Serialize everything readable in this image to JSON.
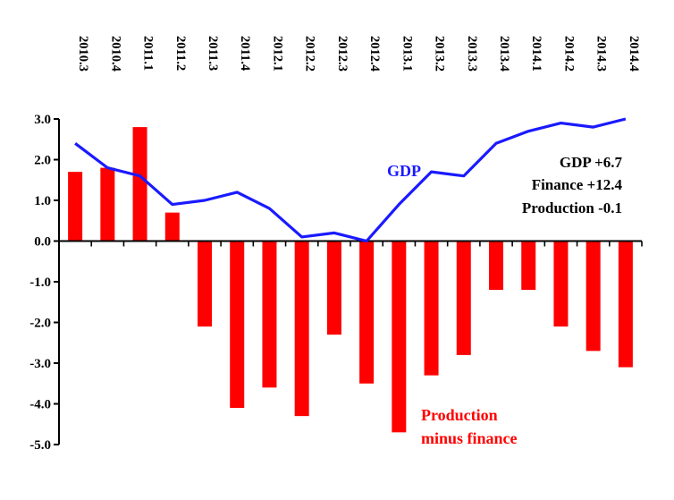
{
  "chart_data": {
    "type": "bar",
    "categories": [
      "2010.3",
      "2010.4",
      "2011.1",
      "2011.2",
      "2011.3",
      "2011.4",
      "2012.1",
      "2012.2",
      "2012.3",
      "2012.4",
      "2013.1",
      "2013.2",
      "2013.3",
      "2013.4",
      "2014.1",
      "2014.2",
      "2014.3",
      "2014.4"
    ],
    "series": [
      {
        "name": "Production minus finance",
        "type": "bar",
        "color": "#ff0000",
        "values": [
          1.7,
          1.8,
          2.8,
          0.7,
          -2.1,
          -4.1,
          -3.6,
          -4.3,
          -2.3,
          -3.5,
          -4.7,
          -3.3,
          -2.8,
          -1.2,
          -1.2,
          -2.1,
          -2.7,
          -3.1
        ]
      },
      {
        "name": "GDP",
        "type": "line",
        "color": "#1a1aff",
        "values": [
          2.4,
          1.8,
          1.6,
          0.9,
          1.0,
          1.2,
          0.8,
          0.1,
          0.2,
          0.0,
          0.9,
          1.7,
          1.6,
          2.4,
          2.7,
          2.9,
          2.8,
          3.0
        ]
      }
    ],
    "ylim": [
      -5.0,
      3.0
    ],
    "yticks": [
      "3.0",
      "2.0",
      "1.0",
      "0.0",
      "-1.0",
      "-2.0",
      "-3.0",
      "-4.0",
      "-5.0"
    ],
    "ytick_values": [
      3,
      2,
      1,
      0,
      -1,
      -2,
      -3,
      -4,
      -5
    ],
    "annotations": {
      "gdp_label": "GDP",
      "production_label_line1": "Production",
      "production_label_line2": "minus finance",
      "summary": [
        "GDP +6.7",
        "Finance +12.4",
        "Production -0.1"
      ]
    },
    "grid": false,
    "legend": "none"
  }
}
